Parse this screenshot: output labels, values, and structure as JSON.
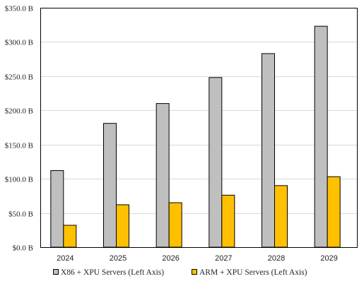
{
  "chart_data": {
    "type": "bar",
    "categories": [
      "2024",
      "2025",
      "2026",
      "2027",
      "2028",
      "2029"
    ],
    "series": [
      {
        "name": "X86 + XPU Servers (Left Axis)",
        "values": [
          112,
          181,
          210,
          248,
          283,
          323
        ],
        "color": "#bfbfbf"
      },
      {
        "name": "ARM + XPU Servers (Left Axis)",
        "values": [
          32,
          62,
          65,
          76,
          90,
          103
        ],
        "color": "#ffc000"
      }
    ],
    "ylim": [
      0,
      350
    ],
    "yticks": [
      0,
      50,
      100,
      150,
      200,
      250,
      300,
      350
    ],
    "ytick_labels": [
      "$0.0 B",
      "$50.0 B",
      "$100.0 B",
      "$150.0 B",
      "$200.0 B",
      "$250.0 B",
      "$300.0 B",
      "$350.0 B"
    ],
    "grid": true,
    "legend_position": "bottom"
  }
}
